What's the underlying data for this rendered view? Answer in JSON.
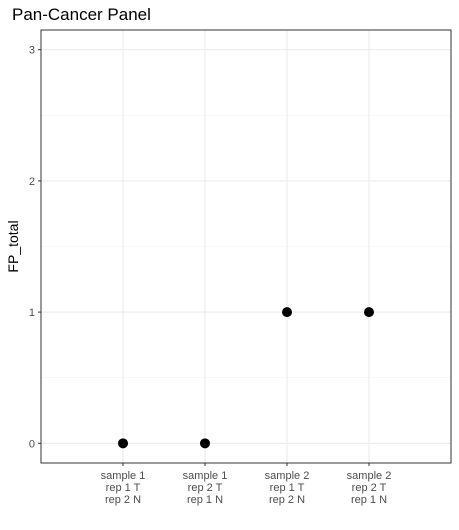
{
  "chart_data": {
    "type": "scatter",
    "title": "Pan-Cancer Panel",
    "xlabel": "",
    "ylabel": "FP_total",
    "categories": [
      [
        "sample 1",
        "rep 1 T",
        "rep 2 N"
      ],
      [
        "sample 1",
        "rep 2 T",
        "rep 1 N"
      ],
      [
        "sample 2",
        "rep 1 T",
        "rep 2 N"
      ],
      [
        "sample 2",
        "rep 2 T",
        "rep 1 N"
      ]
    ],
    "values": [
      0,
      0,
      1,
      1
    ],
    "ylim": [
      -0.15,
      3.15
    ],
    "yticks": [
      0,
      1,
      2,
      3
    ],
    "grid": true,
    "legend": "none",
    "colors": {
      "point": "#000000",
      "grid_major": "#ebebeb",
      "grid_minor": "#f3f3f3",
      "panel_border": "#333333",
      "tick_label": "#4d4d4d"
    }
  }
}
